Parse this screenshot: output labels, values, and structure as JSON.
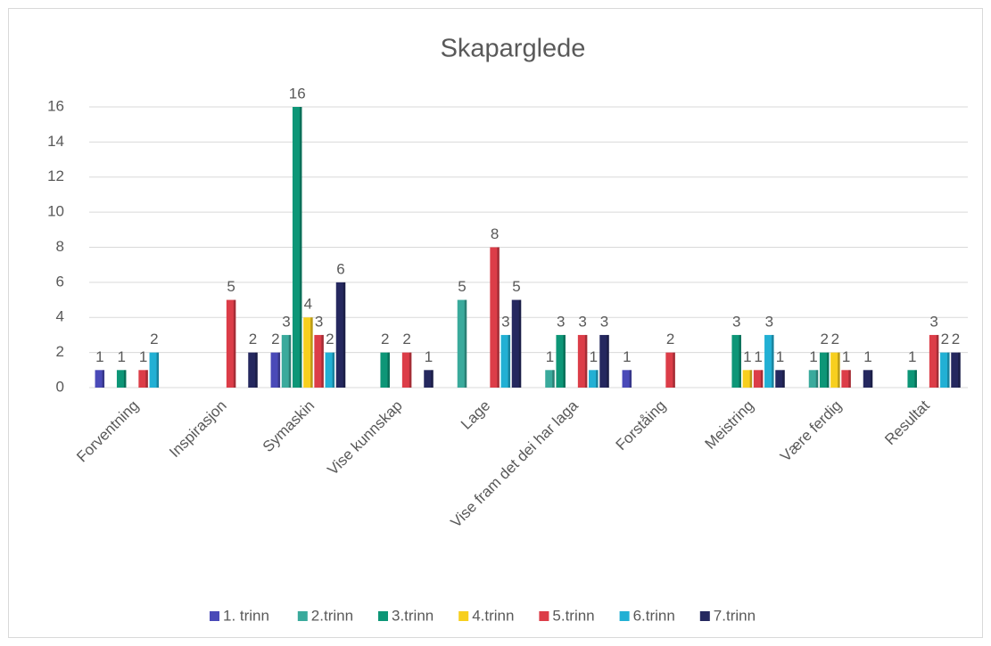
{
  "chart_data": {
    "type": "bar",
    "title": "Skaparglede",
    "categories": [
      "Forventning",
      "Inspirasjon",
      "Symaskin",
      "Vise kunnskap",
      "Lage",
      "Vise fram det dei har laga",
      "Forståing",
      "Meistring",
      "Være ferdig",
      "Resultat"
    ],
    "series": [
      {
        "name": "1. trinn",
        "color": "#4a4ab8",
        "values": [
          1,
          null,
          2,
          null,
          null,
          null,
          1,
          null,
          null,
          null
        ]
      },
      {
        "name": "2.trinn",
        "color": "#3aaa9c",
        "values": [
          null,
          null,
          3,
          null,
          5,
          1,
          null,
          null,
          1,
          null
        ]
      },
      {
        "name": "3.trinn",
        "color": "#0d9677",
        "values": [
          1,
          null,
          16,
          2,
          null,
          3,
          null,
          3,
          2,
          1
        ]
      },
      {
        "name": "4.trinn",
        "color": "#f7cf1e",
        "values": [
          null,
          null,
          4,
          null,
          null,
          null,
          null,
          1,
          2,
          null
        ]
      },
      {
        "name": "5.trinn",
        "color": "#dc3d48",
        "values": [
          1,
          5,
          3,
          2,
          8,
          3,
          2,
          1,
          1,
          3
        ]
      },
      {
        "name": "6.trinn",
        "color": "#22b0d4",
        "values": [
          2,
          null,
          2,
          null,
          3,
          1,
          null,
          3,
          null,
          2
        ]
      },
      {
        "name": "7.trinn",
        "color": "#25285f",
        "values": [
          null,
          2,
          6,
          1,
          5,
          3,
          null,
          1,
          1,
          2
        ]
      }
    ],
    "ylim": [
      0,
      16
    ],
    "yticks": [
      0,
      2,
      4,
      6,
      8,
      10,
      12,
      14,
      16
    ],
    "grid": true,
    "legend": "bottom"
  }
}
